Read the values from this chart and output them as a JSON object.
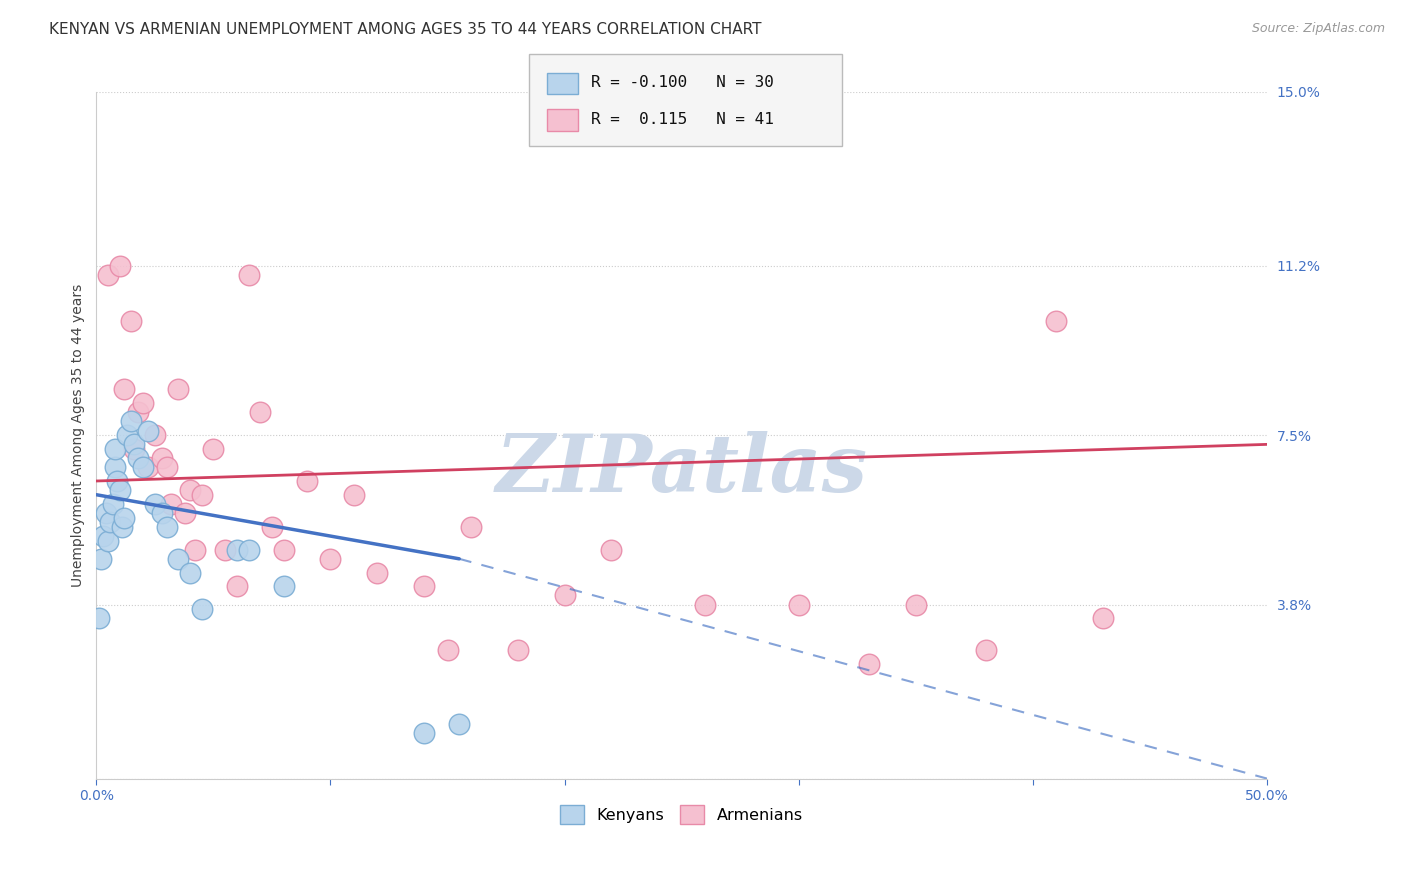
{
  "title": "KENYAN VS ARMENIAN UNEMPLOYMENT AMONG AGES 35 TO 44 YEARS CORRELATION CHART",
  "source": "Source: ZipAtlas.com",
  "ylabel": "Unemployment Among Ages 35 to 44 years",
  "xlim": [
    0.0,
    0.5
  ],
  "ylim": [
    0.0,
    0.15
  ],
  "xticks": [
    0.0,
    0.1,
    0.2,
    0.3,
    0.4,
    0.5
  ],
  "xticklabels": [
    "0.0%",
    "",
    "",
    "",
    "",
    "50.0%"
  ],
  "ytick_labels_right": [
    "15.0%",
    "11.2%",
    "7.5%",
    "3.8%"
  ],
  "ytick_vals_right": [
    0.15,
    0.112,
    0.075,
    0.038
  ],
  "grid_yticks": [
    0.15,
    0.112,
    0.075,
    0.038,
    0.0
  ],
  "background_color": "#ffffff",
  "kenyan_color": "#b8d4ec",
  "armenian_color": "#f5c0d0",
  "kenyan_edge_color": "#7badd4",
  "armenian_edge_color": "#e88aa8",
  "kenyan_line_color": "#4472c4",
  "armenian_line_color": "#d04060",
  "kenyan_R": -0.1,
  "kenyan_N": 30,
  "armenian_R": 0.115,
  "armenian_N": 41,
  "kenyan_scatter_x": [
    0.001,
    0.002,
    0.003,
    0.004,
    0.005,
    0.006,
    0.007,
    0.008,
    0.008,
    0.009,
    0.01,
    0.011,
    0.012,
    0.013,
    0.015,
    0.016,
    0.018,
    0.02,
    0.022,
    0.025,
    0.028,
    0.03,
    0.035,
    0.04,
    0.045,
    0.06,
    0.065,
    0.08,
    0.14,
    0.155
  ],
  "kenyan_scatter_y": [
    0.035,
    0.048,
    0.053,
    0.058,
    0.052,
    0.056,
    0.06,
    0.068,
    0.072,
    0.065,
    0.063,
    0.055,
    0.057,
    0.075,
    0.078,
    0.073,
    0.07,
    0.068,
    0.076,
    0.06,
    0.058,
    0.055,
    0.048,
    0.045,
    0.037,
    0.05,
    0.05,
    0.042,
    0.01,
    0.012
  ],
  "armenian_scatter_x": [
    0.005,
    0.01,
    0.012,
    0.015,
    0.016,
    0.018,
    0.02,
    0.022,
    0.025,
    0.028,
    0.03,
    0.032,
    0.035,
    0.038,
    0.04,
    0.042,
    0.045,
    0.05,
    0.055,
    0.06,
    0.065,
    0.07,
    0.075,
    0.08,
    0.09,
    0.1,
    0.11,
    0.12,
    0.14,
    0.15,
    0.16,
    0.18,
    0.2,
    0.22,
    0.26,
    0.3,
    0.33,
    0.35,
    0.38,
    0.41,
    0.43
  ],
  "armenian_scatter_y": [
    0.11,
    0.112,
    0.085,
    0.1,
    0.072,
    0.08,
    0.082,
    0.068,
    0.075,
    0.07,
    0.068,
    0.06,
    0.085,
    0.058,
    0.063,
    0.05,
    0.062,
    0.072,
    0.05,
    0.042,
    0.11,
    0.08,
    0.055,
    0.05,
    0.065,
    0.048,
    0.062,
    0.045,
    0.042,
    0.028,
    0.055,
    0.028,
    0.04,
    0.05,
    0.038,
    0.038,
    0.025,
    0.038,
    0.028,
    0.1,
    0.035
  ],
  "kenyan_line_x0": 0.0,
  "kenyan_line_y0": 0.062,
  "kenyan_line_x1": 0.155,
  "kenyan_line_y1": 0.048,
  "kenyan_line_dash_x1": 0.5,
  "kenyan_line_dash_y1": 0.0,
  "armenian_line_x0": 0.0,
  "armenian_line_y0": 0.065,
  "armenian_line_x1": 0.5,
  "armenian_line_y1": 0.073,
  "watermark": "ZIPatlas",
  "watermark_color": "#ccd8e8",
  "title_fontsize": 11,
  "axis_label_fontsize": 10,
  "tick_label_fontsize": 10
}
